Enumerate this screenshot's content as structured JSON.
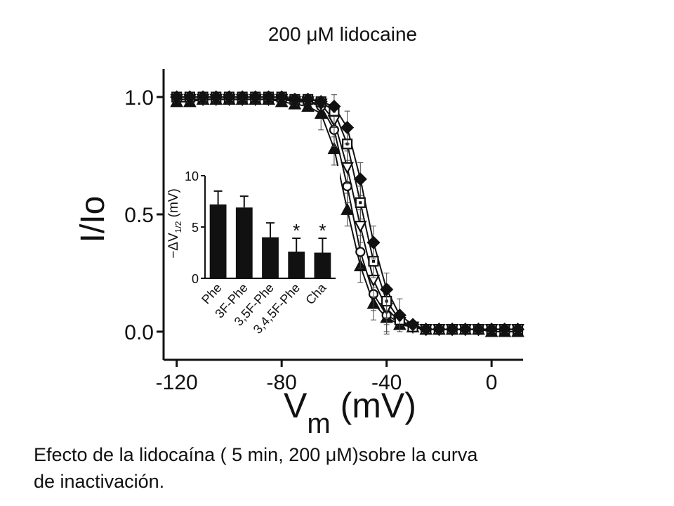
{
  "chart_data": [
    {
      "type": "scatter",
      "title": "200 μM lidocaine",
      "xlabel_main": "V",
      "xlabel_sub": "m",
      "xlabel_unit": " (mV)",
      "ylabel": "I/Io",
      "xlim": [
        -125,
        12
      ],
      "ylim": [
        -0.12,
        1.12
      ],
      "xticks": [
        -120,
        -80,
        -40,
        0
      ],
      "xtick_labels": [
        "-120",
        "-80",
        "-40",
        "0"
      ],
      "yticks": [
        0.0,
        0.5,
        1.0
      ],
      "ytick_labels": [
        "0.0",
        "0.5",
        "1.0"
      ],
      "grid": false,
      "x": [
        -120,
        -115,
        -110,
        -105,
        -100,
        -95,
        -90,
        -85,
        -80,
        -75,
        -70,
        -65,
        -60,
        -55,
        -50,
        -45,
        -40,
        -35,
        -30,
        -25,
        -20,
        -15,
        -10,
        -5,
        0,
        5,
        10
      ],
      "series": [
        {
          "marker": "triangle-up",
          "fill": "filled",
          "values": [
            0.98,
            0.98,
            0.99,
            0.99,
            0.99,
            0.99,
            0.99,
            0.99,
            0.98,
            0.97,
            0.96,
            0.93,
            0.78,
            0.52,
            0.28,
            0.12,
            0.06,
            0.03,
            0.02,
            0.01,
            0.01,
            0.01,
            0.01,
            0.01,
            0.0,
            0.0,
            0.0
          ]
        },
        {
          "marker": "circle",
          "fill": "open",
          "values": [
            0.99,
            0.99,
            0.99,
            0.99,
            0.99,
            0.99,
            0.99,
            0.99,
            0.99,
            0.99,
            0.98,
            0.96,
            0.86,
            0.62,
            0.34,
            0.16,
            0.07,
            0.04,
            0.02,
            0.01,
            0.01,
            0.01,
            0.01,
            0.01,
            0.01,
            0.01,
            0.01
          ]
        },
        {
          "marker": "triangle-down",
          "fill": "open",
          "values": [
            0.99,
            0.99,
            0.99,
            0.99,
            0.99,
            0.99,
            0.99,
            0.99,
            0.99,
            0.98,
            0.98,
            0.97,
            0.9,
            0.7,
            0.45,
            0.22,
            0.1,
            0.04,
            0.02,
            0.01,
            0.01,
            0.01,
            0.01,
            0.01,
            0.01,
            0.01,
            0.01
          ]
        },
        {
          "marker": "square",
          "fill": "open-dot",
          "values": [
            1.0,
            1.0,
            1.0,
            1.0,
            1.0,
            1.0,
            1.0,
            1.0,
            1.0,
            0.99,
            0.99,
            0.98,
            0.94,
            0.8,
            0.55,
            0.3,
            0.13,
            0.05,
            0.02,
            0.01,
            0.01,
            0.01,
            0.01,
            0.01,
            0.01,
            0.01,
            0.01
          ]
        },
        {
          "marker": "diamond",
          "fill": "filled",
          "values": [
            1.0,
            1.0,
            1.0,
            1.0,
            1.0,
            1.0,
            1.0,
            1.0,
            1.0,
            0.99,
            0.99,
            0.98,
            0.96,
            0.87,
            0.65,
            0.38,
            0.18,
            0.07,
            0.03,
            0.01,
            0.01,
            0.01,
            0.01,
            0.01,
            0.01,
            0.01,
            0.01
          ]
        }
      ]
    },
    {
      "type": "bar",
      "ylabel": "−ΔV1/2 (mV)",
      "ylabel_main": "−ΔV",
      "ylabel_sub": "1/2",
      "ylabel_unit": " (mV)",
      "ylim": [
        0,
        10
      ],
      "yticks": [
        0,
        5,
        10
      ],
      "ytick_labels": [
        "0",
        "5",
        "10"
      ],
      "categories": [
        "Phe",
        "3F-Phe",
        "3,5F-Phe",
        "3,4,5F-Phe",
        "Cha"
      ],
      "values": [
        7.2,
        6.9,
        4.0,
        2.6,
        2.5
      ],
      "errors": [
        1.3,
        1.1,
        1.4,
        1.3,
        1.4
      ],
      "annotations": [
        "",
        "",
        "",
        "*",
        "*"
      ]
    }
  ],
  "caption": {
    "line1": "Efecto de la lidocaína ( 5 min, 200 μM)sobre la curva",
    "line2": "de inactivación."
  }
}
